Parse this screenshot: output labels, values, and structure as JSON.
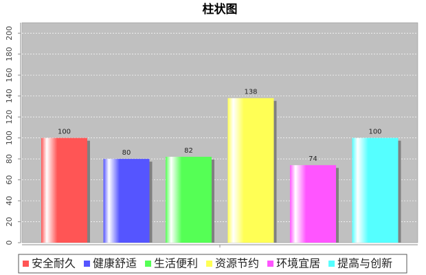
{
  "chart_data": {
    "type": "bar",
    "title": "柱状图",
    "categories": [
      null
    ],
    "series": [
      {
        "name": "安全耐久",
        "color": "#ff5555",
        "values": [
          100
        ]
      },
      {
        "name": "健康舒适",
        "color": "#5555ff",
        "values": [
          80
        ]
      },
      {
        "name": "生活便利",
        "color": "#55ff55",
        "values": [
          82
        ]
      },
      {
        "name": "资源节约",
        "color": "#ffff55",
        "values": [
          138
        ]
      },
      {
        "name": "环境宜居",
        "color": "#ff55ff",
        "values": [
          74
        ]
      },
      {
        "name": "提高与创新",
        "color": "#55ffff",
        "values": [
          100
        ]
      }
    ],
    "ylim": [
      0,
      210
    ],
    "yticks": [
      0,
      20,
      40,
      60,
      80,
      100,
      120,
      140,
      160,
      180,
      200
    ],
    "grid": true
  }
}
